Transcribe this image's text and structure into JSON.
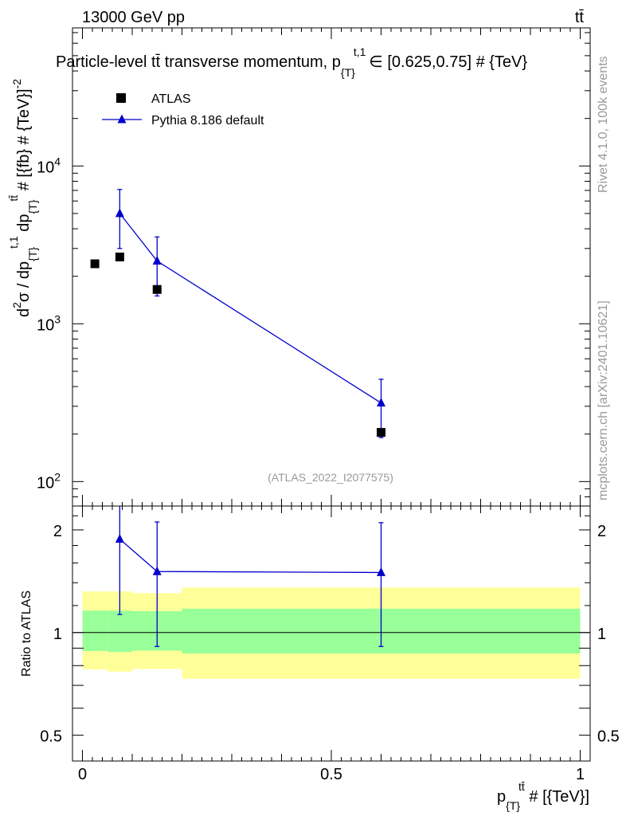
{
  "header": {
    "energy_label": "13000 GeV pp",
    "process_label": "tt̄"
  },
  "side_labels": {
    "rivet": "Rivet 4.1.0,  100k events",
    "mcplots": "mcplots.cern.ch [arXiv:2401.10621]"
  },
  "chart_data": {
    "type": "scatter",
    "title": "Particle-level tt̄ transverse momentum, p_{T}^{t,1} ∈ [0.625,0.75] # {TeV}",
    "title_main": "Particle-level tt̄ transverse momentum, p",
    "title_sub": "{T}",
    "title_sup": "t,1",
    "title_end": "∈ [0.625,0.75] # {TeV}",
    "watermark": "(ATLAS_2022_I2077575)",
    "ylabel": "d²σ / dp_{T}^{t,1} dp_{T}^{tt̄} # [{fb} # {TeV}^{-2}]",
    "ylabel_parts": {
      "d": "d",
      "exp2": "2",
      "sigma_div": "σ / dp",
      "sub1": "{T}",
      "sup1": "t,1",
      "dp": " dp",
      "sub2": "{T}",
      "sup2": "tt̄",
      "rest": " # [{fb} # {TeV}]",
      "sup3": "-2"
    },
    "xlabel": "p_{T}^{tt̄} # [{TeV}]",
    "xlabel_parts": {
      "p": "p",
      "sub": "{T}",
      "sup": "tt̄",
      "rest": " # [{TeV}]"
    },
    "ratio_ylabel": "Ratio to ATLAS",
    "xlim": [
      -0.02,
      1.02
    ],
    "ylim": [
      70,
      75000
    ],
    "yscale": "log",
    "ratio_ylim": [
      0.42,
      2.35
    ],
    "ratio_yscale": "log",
    "x_ticks": [
      {
        "value": 0,
        "label": "0"
      },
      {
        "value": 0.5,
        "label": "0.5"
      },
      {
        "value": 1,
        "label": "1"
      }
    ],
    "y_ticks": [
      {
        "value": 100,
        "base": "10",
        "exp": "2"
      },
      {
        "value": 1000,
        "base": "10",
        "exp": "3"
      },
      {
        "value": 10000,
        "base": "10",
        "exp": "4"
      }
    ],
    "ratio_ticks": [
      {
        "value": 0.5,
        "label": "0.5"
      },
      {
        "value": 1,
        "label": "1"
      },
      {
        "value": 2,
        "label": "2"
      }
    ],
    "legend": [
      {
        "name": "ATLAS",
        "marker": "square",
        "color": "#000000"
      },
      {
        "name": "Pythia 8.186 default",
        "marker": "triangle",
        "color": "#0000cc"
      }
    ],
    "series": [
      {
        "name": "ATLAS",
        "x": [
          0.025,
          0.075,
          0.15,
          0.6
        ],
        "y": [
          2400,
          2650,
          1650,
          205
        ],
        "yerr_lo": [
          0,
          0,
          0,
          0
        ],
        "yerr_hi": [
          0,
          0,
          0,
          0
        ],
        "color": "#000000"
      },
      {
        "name": "Pythia 8.186 default",
        "x": [
          0.075,
          0.15,
          0.6
        ],
        "y": [
          5000,
          2500,
          315
        ],
        "yerr_lo": [
          2000,
          1000,
          125
        ],
        "yerr_hi": [
          2100,
          1050,
          130
        ],
        "color": "#0000cc"
      }
    ],
    "ratio_series": {
      "name": "Pythia 8.186 default",
      "x": [
        0.075,
        0.15,
        0.6
      ],
      "y": [
        1.88,
        1.51,
        1.5
      ],
      "yerr_lo": [
        0.75,
        0.6,
        0.59
      ],
      "yerr_hi": [
        0.5,
        0.6,
        0.6
      ],
      "color": "#0000cc"
    },
    "uncertainty_bands": [
      {
        "x0": 0.0,
        "x1": 0.05,
        "inner": [
          0.883,
          1.16
        ],
        "outer": [
          0.78,
          1.32
        ]
      },
      {
        "x0": 0.05,
        "x1": 0.1,
        "inner": [
          0.877,
          1.16
        ],
        "outer": [
          0.768,
          1.32
        ]
      },
      {
        "x0": 0.1,
        "x1": 0.2,
        "inner": [
          0.885,
          1.155
        ],
        "outer": [
          0.782,
          1.305
        ]
      },
      {
        "x0": 0.2,
        "x1": 1.0,
        "inner": [
          0.868,
          1.175
        ],
        "outer": [
          0.732,
          1.355
        ]
      }
    ],
    "band_colors": {
      "inner": "#99ff99",
      "outer": "#ffff99"
    }
  }
}
